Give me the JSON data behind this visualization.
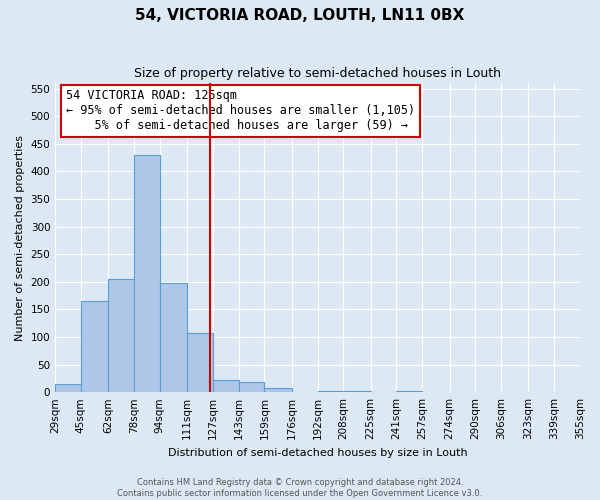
{
  "title": "54, VICTORIA ROAD, LOUTH, LN11 0BX",
  "subtitle": "Size of property relative to semi-detached houses in Louth",
  "xlabel": "Distribution of semi-detached houses by size in Louth",
  "ylabel": "Number of semi-detached properties",
  "bin_edges": [
    29,
    45,
    62,
    78,
    94,
    111,
    127,
    143,
    159,
    176,
    192,
    208,
    225,
    241,
    257,
    274,
    290,
    306,
    323,
    339,
    355
  ],
  "bin_labels": [
    "29sqm",
    "45sqm",
    "62sqm",
    "78sqm",
    "94sqm",
    "111sqm",
    "127sqm",
    "143sqm",
    "159sqm",
    "176sqm",
    "192sqm",
    "208sqm",
    "225sqm",
    "241sqm",
    "257sqm",
    "274sqm",
    "290sqm",
    "306sqm",
    "323sqm",
    "339sqm",
    "355sqm"
  ],
  "bar_heights": [
    15,
    165,
    205,
    430,
    197,
    108,
    22,
    18,
    7,
    0,
    3,
    3,
    0,
    2,
    0,
    0,
    1,
    0,
    0,
    0
  ],
  "bar_color": "#aec6e8",
  "bar_edge_color": "#5a9fd4",
  "ylim": [
    0,
    560
  ],
  "yticks": [
    0,
    50,
    100,
    150,
    200,
    250,
    300,
    350,
    400,
    450,
    500,
    550
  ],
  "property_value": 125,
  "vline_color": "#cc0000",
  "annotation_text_line1": "54 VICTORIA ROAD: 125sqm",
  "annotation_text_line2": "← 95% of semi-detached houses are smaller (1,105)",
  "annotation_text_line3": "    5% of semi-detached houses are larger (59) →",
  "annotation_box_color": "#ffffff",
  "annotation_box_edge": "#cc0000",
  "footer_line1": "Contains HM Land Registry data © Crown copyright and database right 2024.",
  "footer_line2": "Contains public sector information licensed under the Open Government Licence v3.0.",
  "background_color": "#dce9f5",
  "plot_bg_color": "#dce9f5",
  "grid_color": "#ffffff",
  "title_fontsize": 11,
  "subtitle_fontsize": 9,
  "ylabel_fontsize": 8,
  "xlabel_fontsize": 8,
  "tick_fontsize": 7.5,
  "annotation_fontsize": 8.5,
  "footer_fontsize": 6
}
